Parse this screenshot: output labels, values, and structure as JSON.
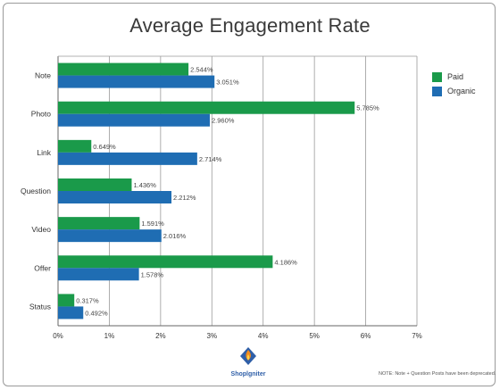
{
  "chart_data": {
    "type": "bar",
    "orientation": "horizontal",
    "title": "Average Engagement Rate",
    "categories": [
      "Note",
      "Photo",
      "Link",
      "Question",
      "Video",
      "Offer",
      "Status"
    ],
    "series": [
      {
        "name": "Paid",
        "color": "#1a9a4a",
        "values": [
          2.544,
          5.785,
          0.649,
          1.436,
          1.591,
          4.186,
          0.317
        ]
      },
      {
        "name": "Organic",
        "color": "#1f6db3",
        "values": [
          3.051,
          2.96,
          2.714,
          2.212,
          2.016,
          1.578,
          0.492
        ]
      }
    ],
    "data_labels": {
      "Paid": [
        "2.544%",
        "5.785%",
        "0.649%",
        "1.436%",
        "1.591%",
        "4.186%",
        "0.317%"
      ],
      "Organic": [
        "3.051%",
        "2.960%",
        "2.714%",
        "2.212%",
        "2.016%",
        "1.578%",
        "0.492%"
      ]
    },
    "xlim": [
      0,
      7
    ],
    "xticks": [
      "0%",
      "1%",
      "2%",
      "3%",
      "4%",
      "5%",
      "6%",
      "7%"
    ],
    "grid": true,
    "legend_position": "top-right"
  },
  "legend": {
    "paid_label": "Paid",
    "organic_label": "Organic"
  },
  "logo": {
    "text": "Shoplgniter"
  },
  "footnote": "NOTE: Note + Question Posts have been deprecated."
}
